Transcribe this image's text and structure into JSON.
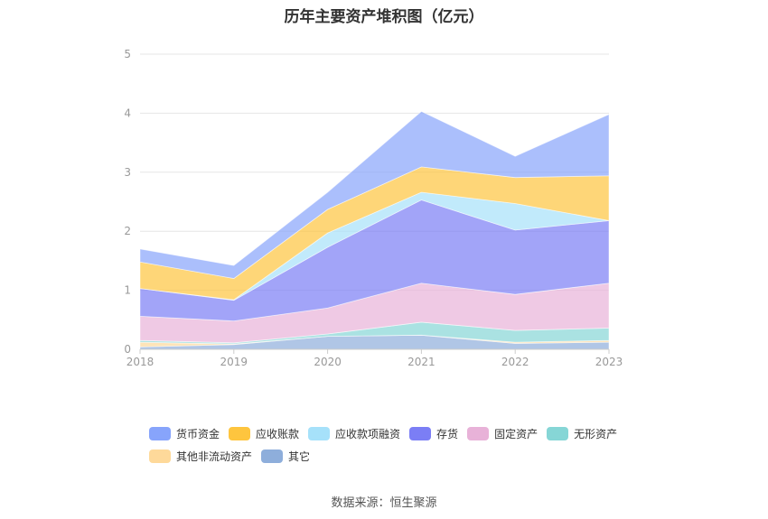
{
  "chart_data": {
    "type": "area",
    "stacked": true,
    "title": "历年主要资产堆积图（亿元）",
    "categories": [
      "2018",
      "2019",
      "2020",
      "2021",
      "2022",
      "2023"
    ],
    "ylim": [
      0,
      5
    ],
    "yticks": [
      "0",
      "1",
      "2",
      "3",
      "4",
      "5"
    ],
    "series": [
      {
        "name": "其它",
        "color": "#8eaedb",
        "values": [
          0.04,
          0.08,
          0.22,
          0.24,
          0.1,
          0.12
        ]
      },
      {
        "name": "其他非流动资产",
        "color": "#fed99a",
        "values": [
          0.08,
          0.01,
          0.0,
          0.0,
          0.02,
          0.03
        ]
      },
      {
        "name": "无形资产",
        "color": "#86d6d6",
        "values": [
          0.03,
          0.02,
          0.04,
          0.22,
          0.2,
          0.21
        ]
      },
      {
        "name": "固定资产",
        "color": "#e8b2d8",
        "values": [
          0.41,
          0.37,
          0.44,
          0.66,
          0.61,
          0.76
        ]
      },
      {
        "name": "存货",
        "color": "#7b7ef5",
        "values": [
          0.47,
          0.35,
          1.03,
          1.41,
          1.09,
          1.06
        ]
      },
      {
        "name": "应收款项融资",
        "color": "#a6e1fa",
        "values": [
          0.0,
          0.01,
          0.24,
          0.13,
          0.45,
          0.0
        ]
      },
      {
        "name": "应收账款",
        "color": "#fec53e",
        "values": [
          0.45,
          0.36,
          0.4,
          0.43,
          0.44,
          0.76
        ]
      },
      {
        "name": "货币资金",
        "color": "#87a4fb",
        "values": [
          0.22,
          0.22,
          0.29,
          0.94,
          0.36,
          1.04
        ]
      }
    ],
    "legend_order": [
      "货币资金",
      "应收账款",
      "应收款项融资",
      "存货",
      "固定资产",
      "无形资产",
      "其他非流动资产",
      "其它"
    ]
  },
  "source_note": "数据来源：恒生聚源"
}
